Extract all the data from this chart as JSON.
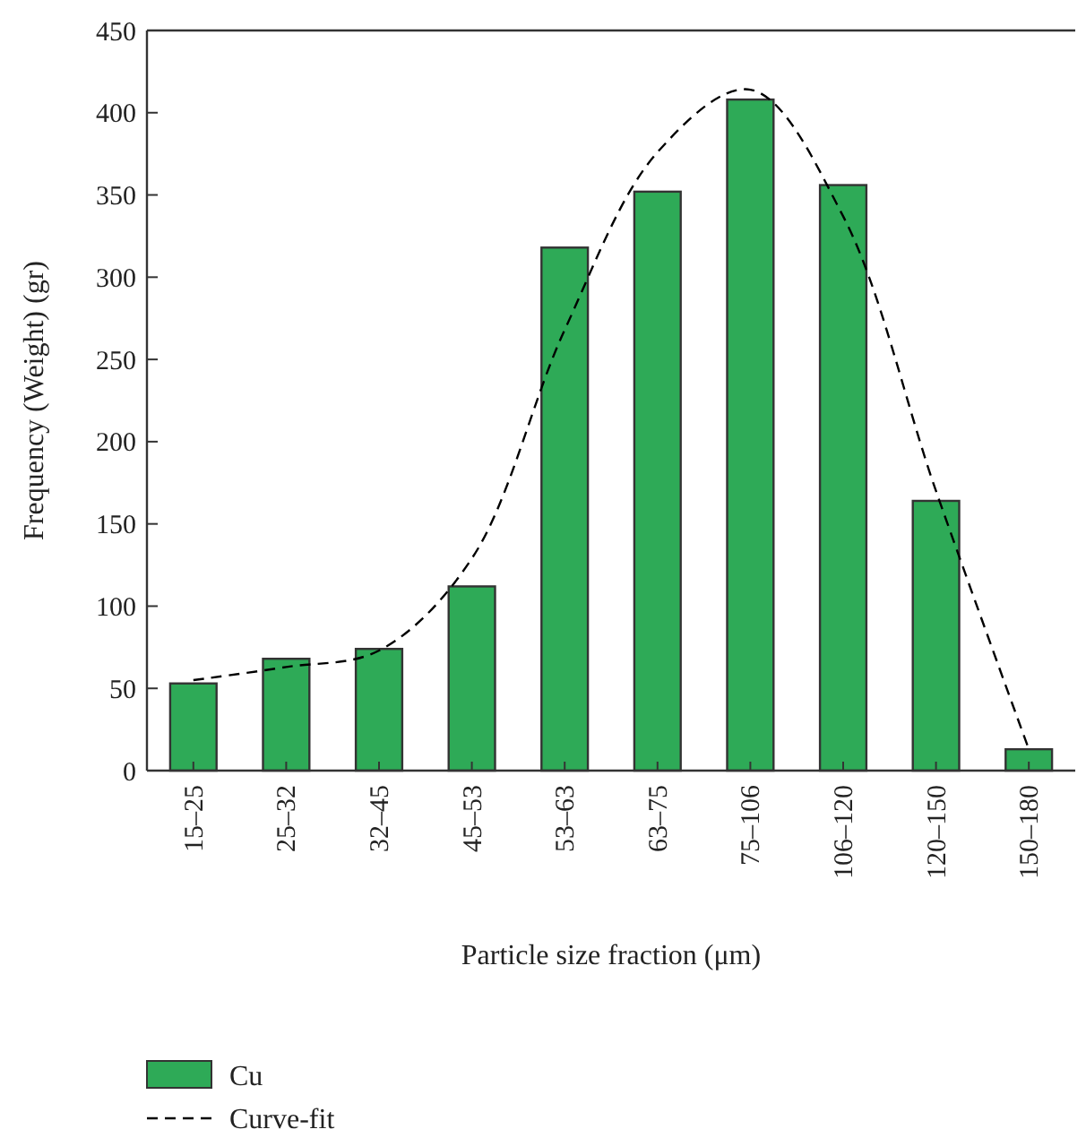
{
  "chart_data": {
    "type": "bar",
    "xlabel": "Particle size fraction (μm)",
    "ylabel": "Frequency (Weight) (gr)",
    "categories": [
      "15–25",
      "25–32",
      "32–45",
      "45–53",
      "53–63",
      "63–75",
      "75–106",
      "106–120",
      "120–150",
      "150–180"
    ],
    "ylim": [
      0,
      450
    ],
    "yticks": [
      0,
      50,
      100,
      150,
      200,
      250,
      300,
      350,
      400,
      450
    ],
    "legend": "bottom left",
    "grid": false,
    "series": [
      {
        "name": "Cu",
        "color": "#2eaa57",
        "values": [
          53,
          68,
          74,
          112,
          318,
          352,
          408,
          356,
          164,
          13
        ]
      },
      {
        "name": "Curve-fit",
        "type": "line",
        "color": "#000000",
        "line_style": "dashed",
        "marker": "none",
        "values": [
          55,
          63,
          73,
          129,
          268,
          376,
          414,
          337,
          170,
          13
        ]
      }
    ]
  }
}
